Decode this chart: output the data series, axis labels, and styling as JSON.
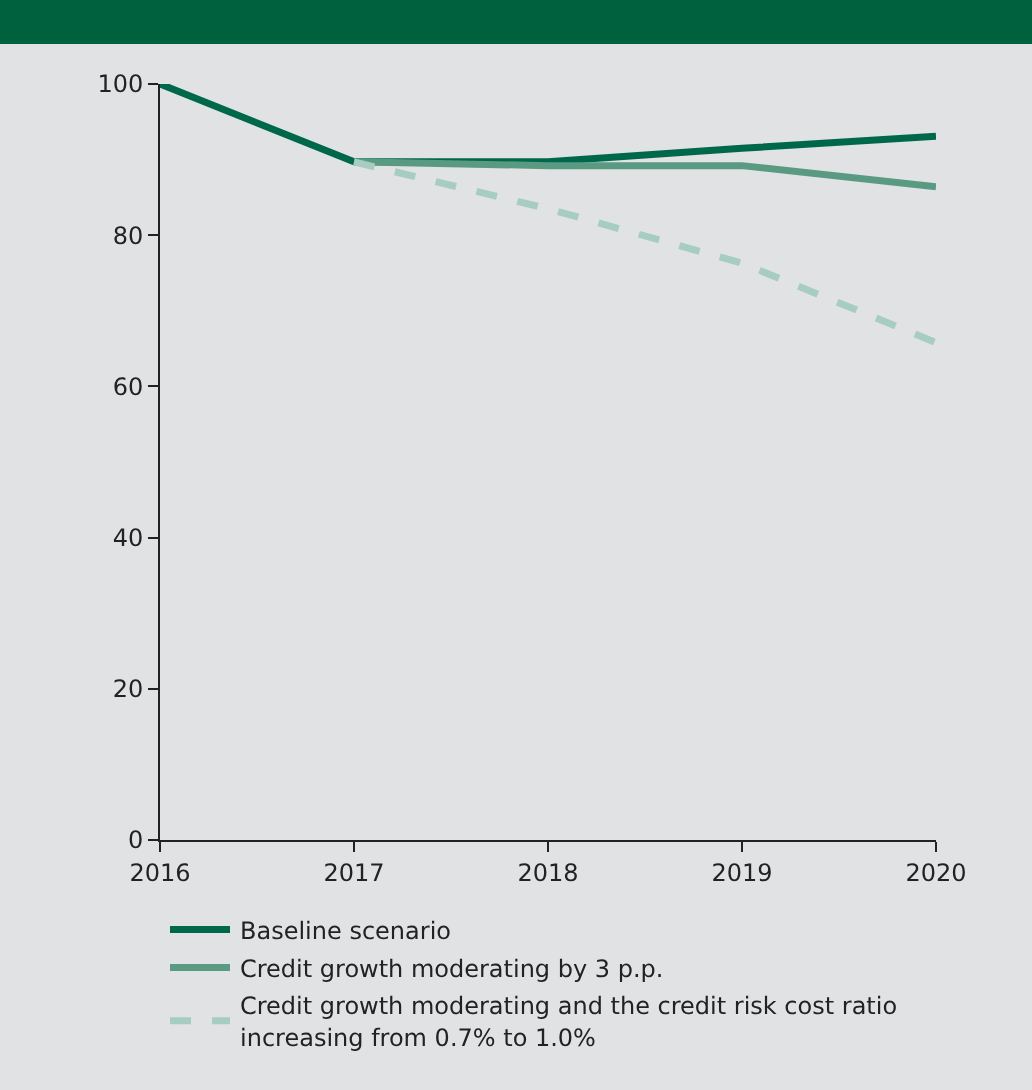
{
  "chart_data": {
    "type": "line",
    "x": [
      2016,
      2017,
      2018,
      2019,
      2020
    ],
    "xlim": [
      2016,
      2020
    ],
    "xticks": [
      2016,
      2017,
      2018,
      2019,
      2020
    ],
    "ylim": [
      0,
      100
    ],
    "yticks": [
      0,
      20,
      40,
      60,
      80,
      100
    ],
    "grid": false,
    "legend": "bottom left",
    "series": [
      {
        "name": "Baseline scenario",
        "color": "#00684a",
        "values": [
          100,
          89.7,
          89.7,
          91.5,
          93.1
        ],
        "line_style": "solid"
      },
      {
        "name": "Credit growth moderating by 3 p.p.",
        "color": "#5a9a82",
        "values": [
          null,
          89.7,
          89.2,
          89.2,
          86.4
        ],
        "line_style": "solid"
      },
      {
        "name": "Credit growth moderating and the credit risk cost ratio increasing from 0.7% to 1.0%",
        "color": "#a6cdbf",
        "values": [
          null,
          89.7,
          83.5,
          76.3,
          65.8
        ],
        "line_style": "dashed"
      }
    ]
  }
}
